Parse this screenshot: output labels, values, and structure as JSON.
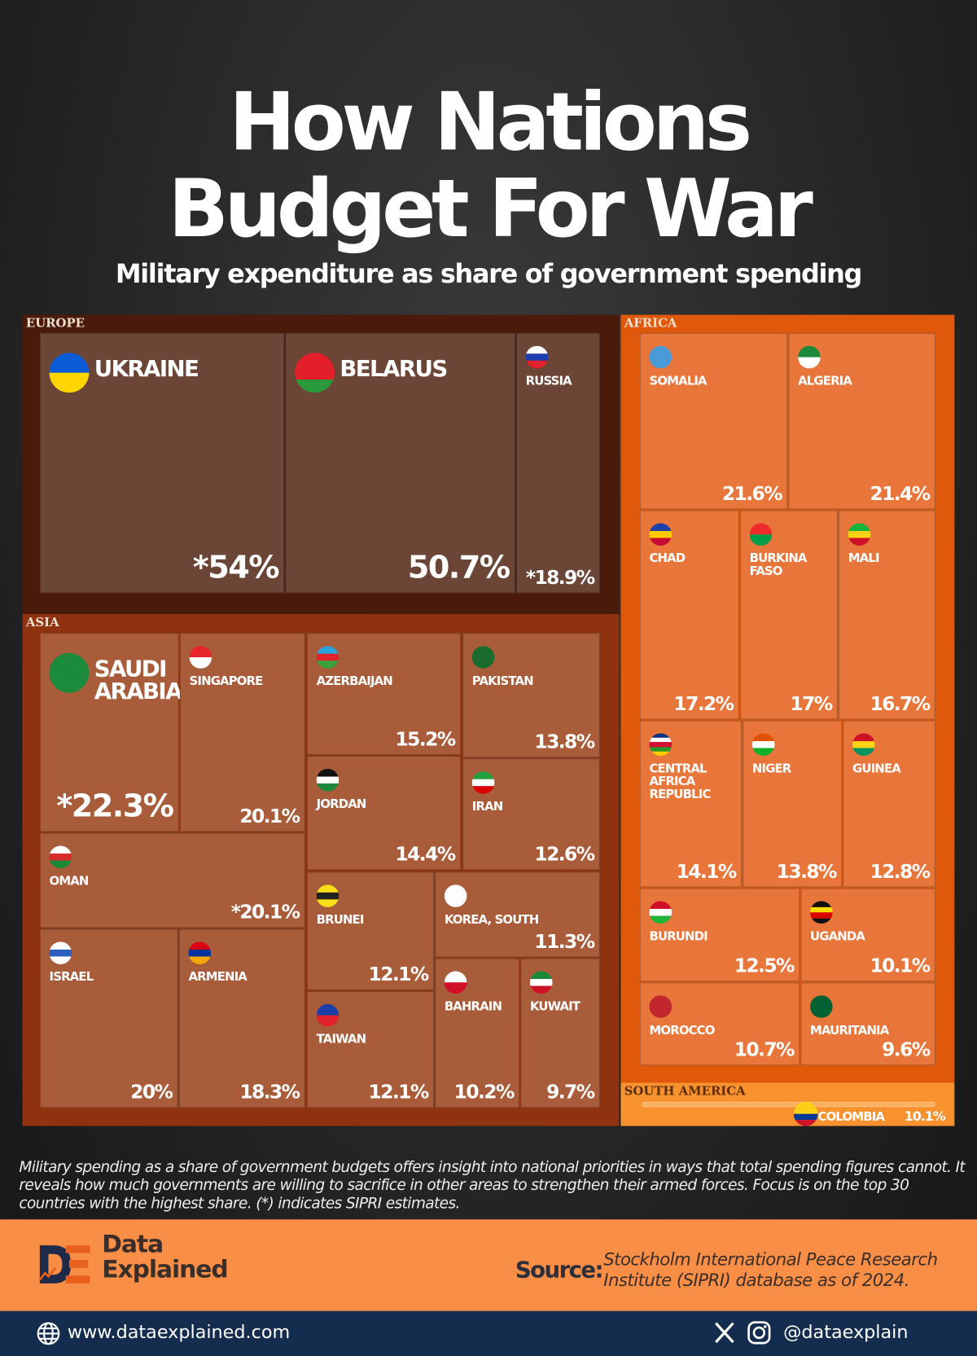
{
  "title_line1": "How Nations",
  "title_line2": "Budget For War",
  "subtitle": "Military expenditure as share of  government spending",
  "chart_data": {
    "type": "treemap",
    "title": "How Nations Budget For War",
    "subtitle": "Military expenditure as share of  government spending",
    "regions": [
      {
        "name": "EUROPE",
        "color": "#4a1a0a",
        "tile_color": "#6b4536",
        "countries": [
          {
            "name": "UKRAINE",
            "label": "*54%",
            "value": 54,
            "estimate": true,
            "flag": [
              "#0a5bd6",
              "#ffd500"
            ]
          },
          {
            "name": "BELARUS",
            "label": "50.7%",
            "value": 50.7,
            "estimate": false,
            "flag": [
              "#e3202a",
              "#e3202a",
              "#2a9a3c"
            ]
          },
          {
            "name": "RUSSIA",
            "label": "*18.9%",
            "value": 18.9,
            "estimate": true,
            "flag": [
              "#ffffff",
              "#1c3fb0",
              "#e0232a"
            ]
          }
        ]
      },
      {
        "name": "ASIA",
        "color": "#8f3210",
        "tile_color": "#a95c3a",
        "countries": [
          {
            "name": "SAUDI ARABIA",
            "label": "*22.3%",
            "value": 22.3,
            "estimate": true,
            "flag": [
              "#1b8a3b"
            ]
          },
          {
            "name": "SINGAPORE",
            "label": "20.1%",
            "value": 20.1,
            "estimate": false,
            "flag": [
              "#e8242c",
              "#ffffff"
            ]
          },
          {
            "name": "AZERBAIJAN",
            "label": "15.2%",
            "value": 15.2,
            "estimate": false,
            "flag": [
              "#2aa3d8",
              "#e0232a",
              "#3aa23a"
            ]
          },
          {
            "name": "PAKISTAN",
            "label": "13.8%",
            "value": 13.8,
            "estimate": false,
            "flag": [
              "#1a6b2e"
            ]
          },
          {
            "name": "JORDAN",
            "label": "14.4%",
            "value": 14.4,
            "estimate": false,
            "flag": [
              "#111111",
              "#ffffff",
              "#1a8a3a"
            ]
          },
          {
            "name": "IRAN",
            "label": "12.6%",
            "value": 12.6,
            "estimate": false,
            "flag": [
              "#239f40",
              "#ffffff",
              "#da0000"
            ]
          },
          {
            "name": "OMAN",
            "label": "*20.1%",
            "value": 20.1,
            "estimate": true,
            "flag": [
              "#ffffff",
              "#d62a2a",
              "#1a8a3a"
            ]
          },
          {
            "name": "BRUNEI",
            "label": "12.1%",
            "value": 12.1,
            "estimate": false,
            "flag": [
              "#f7e017",
              "#222222",
              "#f7e017"
            ]
          },
          {
            "name": "KOREA, SOUTH",
            "label": "11.3%",
            "value": 11.3,
            "estimate": false,
            "flag": [
              "#ffffff"
            ]
          },
          {
            "name": "ISRAEL",
            "label": "20%",
            "value": 20,
            "estimate": false,
            "flag": [
              "#ffffff",
              "#2a5fc0",
              "#ffffff"
            ]
          },
          {
            "name": "ARMENIA",
            "label": "18.3%",
            "value": 18.3,
            "estimate": false,
            "flag": [
              "#d90012",
              "#0033a0",
              "#f2a800"
            ]
          },
          {
            "name": "TAIWAN",
            "label": "12.1%",
            "value": 12.1,
            "estimate": false,
            "flag": [
              "#1c3fa8",
              "#e0232a"
            ]
          },
          {
            "name": "BAHRAIN",
            "label": "10.2%",
            "value": 10.2,
            "estimate": false,
            "flag": [
              "#ffffff",
              "#ce1126"
            ]
          },
          {
            "name": "KUWAIT",
            "label": "9.7%",
            "value": 9.7,
            "estimate": false,
            "flag": [
              "#1a8a3a",
              "#ffffff",
              "#ce1126"
            ]
          }
        ]
      },
      {
        "name": "AFRICA",
        "color": "#e0580a",
        "tile_color": "#e8763a",
        "countries": [
          {
            "name": "SOMALIA",
            "label": "21.6%",
            "value": 21.6,
            "estimate": false,
            "flag": [
              "#4a9ad8"
            ]
          },
          {
            "name": "ALGERIA",
            "label": "21.4%",
            "value": 21.4,
            "estimate": false,
            "flag": [
              "#1a8a3a",
              "#ffffff"
            ]
          },
          {
            "name": "CHAD",
            "label": "17.2%",
            "value": 17.2,
            "estimate": false,
            "flag": [
              "#1c3fa8",
              "#fecb00",
              "#c60c30"
            ]
          },
          {
            "name": "BURKINA FASO",
            "label": "17%",
            "value": 17,
            "estimate": false,
            "flag": [
              "#ef2b2d",
              "#009e49"
            ]
          },
          {
            "name": "MALI",
            "label": "16.7%",
            "value": 16.7,
            "estimate": false,
            "flag": [
              "#14b53a",
              "#fcd116",
              "#ce1126"
            ]
          },
          {
            "name": "CENTRAL AFRICA REPUBLIC",
            "label": "14.1%",
            "value": 14.1,
            "estimate": false,
            "flag": [
              "#003082",
              "#ffffff",
              "#d21034",
              "#289728",
              "#ffce00"
            ]
          },
          {
            "name": "NIGER",
            "label": "13.8%",
            "value": 13.8,
            "estimate": false,
            "flag": [
              "#e05206",
              "#ffffff",
              "#0db02b"
            ]
          },
          {
            "name": "GUINEA",
            "label": "12.8%",
            "value": 12.8,
            "estimate": false,
            "flag": [
              "#ce1126",
              "#fcd116",
              "#009460"
            ]
          },
          {
            "name": "BURUNDI",
            "label": "12.5%",
            "value": 12.5,
            "estimate": false,
            "flag": [
              "#ce1126",
              "#ffffff",
              "#1eb53a"
            ]
          },
          {
            "name": "UGANDA",
            "label": "10.1%",
            "value": 10.1,
            "estimate": false,
            "flag": [
              "#111111",
              "#fcdc04",
              "#d90000",
              "#111111"
            ]
          },
          {
            "name": "MOROCCO",
            "label": "10.7%",
            "value": 10.7,
            "estimate": false,
            "flag": [
              "#c1272d"
            ]
          },
          {
            "name": "MAURITANIA",
            "label": "9.6%",
            "value": 9.6,
            "estimate": false,
            "flag": [
              "#006233"
            ]
          }
        ]
      },
      {
        "name": "SOUTH AMERICA",
        "color": "#f8922e",
        "tile_color": "#f8922e",
        "countries": [
          {
            "name": "COLOMBIA",
            "label": "10.1%",
            "value": 10.1,
            "estimate": false,
            "flag": [
              "#fcd116",
              "#fcd116",
              "#003893",
              "#ce1126"
            ]
          }
        ]
      }
    ]
  },
  "note": "Military spending as a share of government budgets offers insight into national priorities in ways that total spending figures cannot. It reveals how much governments are willing to sacrifice in other areas to strengthen their armed forces. Focus is on the top 30 countries with the highest share. (*) indicates SIPRI estimates.",
  "brand": {
    "line1": "Data",
    "line2": "Explained",
    "logo_letters": "DE"
  },
  "source": {
    "label": "Source:",
    "text": "Stockholm International Peace Research Institute (SIPRI) database as of 2024."
  },
  "footer": {
    "website": "www.dataexplained.com",
    "handle": "@dataexplain",
    "icons": [
      "globe-icon",
      "x-icon",
      "instagram-icon"
    ]
  },
  "colors": {
    "footer_orange": "#f98e47",
    "footer_navy": "#142d4f"
  }
}
